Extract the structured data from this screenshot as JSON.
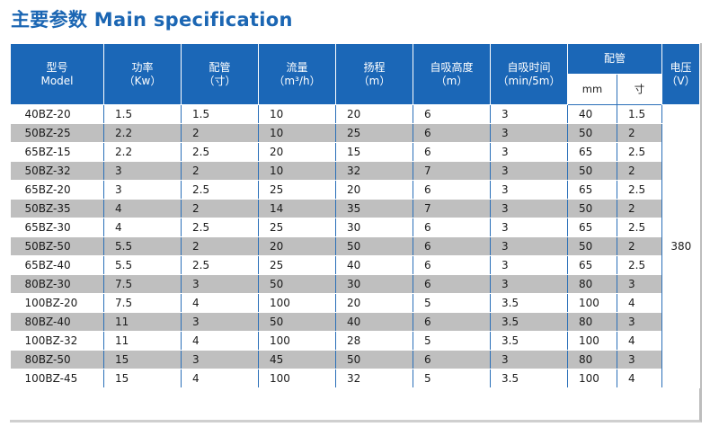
{
  "title": "主要参数 Main specification",
  "header": {
    "model": [
      "型号",
      "Model"
    ],
    "power": [
      "功率",
      "（Kw）"
    ],
    "pipe_size": [
      "配管",
      "（寸）"
    ],
    "flow": [
      "流量",
      "（m³/h）"
    ],
    "head": [
      "扬程",
      "（m）"
    ],
    "suction_height": [
      "自吸高度",
      "（m）"
    ],
    "suction_time": [
      "自吸时间",
      "（min/5m）"
    ],
    "pipe_group": "配管",
    "pipe_mm": "mm",
    "pipe_cun": "寸",
    "voltage": [
      "电压",
      "（V）"
    ]
  },
  "voltage_value": "380",
  "rows": [
    [
      "40BZ-20",
      "1.5",
      "1.5",
      "10",
      "20",
      "6",
      "3",
      "40",
      "1.5"
    ],
    [
      "50BZ-25",
      "2.2",
      "2",
      "10",
      "25",
      "6",
      "3",
      "50",
      "2"
    ],
    [
      "65BZ-15",
      "2.2",
      "2.5",
      "20",
      "15",
      "6",
      "3",
      "65",
      "2.5"
    ],
    [
      "50BZ-32",
      "3",
      "2",
      "10",
      "32",
      "7",
      "3",
      "50",
      "2"
    ],
    [
      "65BZ-20",
      "3",
      "2.5",
      "25",
      "20",
      "6",
      "3",
      "65",
      "2.5"
    ],
    [
      "50BZ-35",
      "4",
      "2",
      "14",
      "35",
      "7",
      "3",
      "50",
      "2"
    ],
    [
      "65BZ-30",
      "4",
      "2.5",
      "25",
      "30",
      "6",
      "3",
      "65",
      "2.5"
    ],
    [
      "50BZ-50",
      "5.5",
      "2",
      "20",
      "50",
      "6",
      "3",
      "50",
      "2"
    ],
    [
      "65BZ-40",
      "5.5",
      "2.5",
      "25",
      "40",
      "6",
      "3",
      "65",
      "2.5"
    ],
    [
      "80BZ-30",
      "7.5",
      "3",
      "50",
      "30",
      "6",
      "3",
      "80",
      "3"
    ],
    [
      "100BZ-20",
      "7.5",
      "4",
      "100",
      "20",
      "5",
      "3.5",
      "100",
      "4"
    ],
    [
      "80BZ-40",
      "11",
      "3",
      "50",
      "40",
      "6",
      "3.5",
      "80",
      "3"
    ],
    [
      "100BZ-32",
      "11",
      "4",
      "100",
      "28",
      "5",
      "3.5",
      "100",
      "4"
    ],
    [
      "80BZ-50",
      "15",
      "3",
      "45",
      "50",
      "6",
      "3",
      "80",
      "3"
    ],
    [
      "100BZ-45",
      "15",
      "4",
      "100",
      "32",
      "5",
      "3.5",
      "100",
      "4"
    ]
  ]
}
